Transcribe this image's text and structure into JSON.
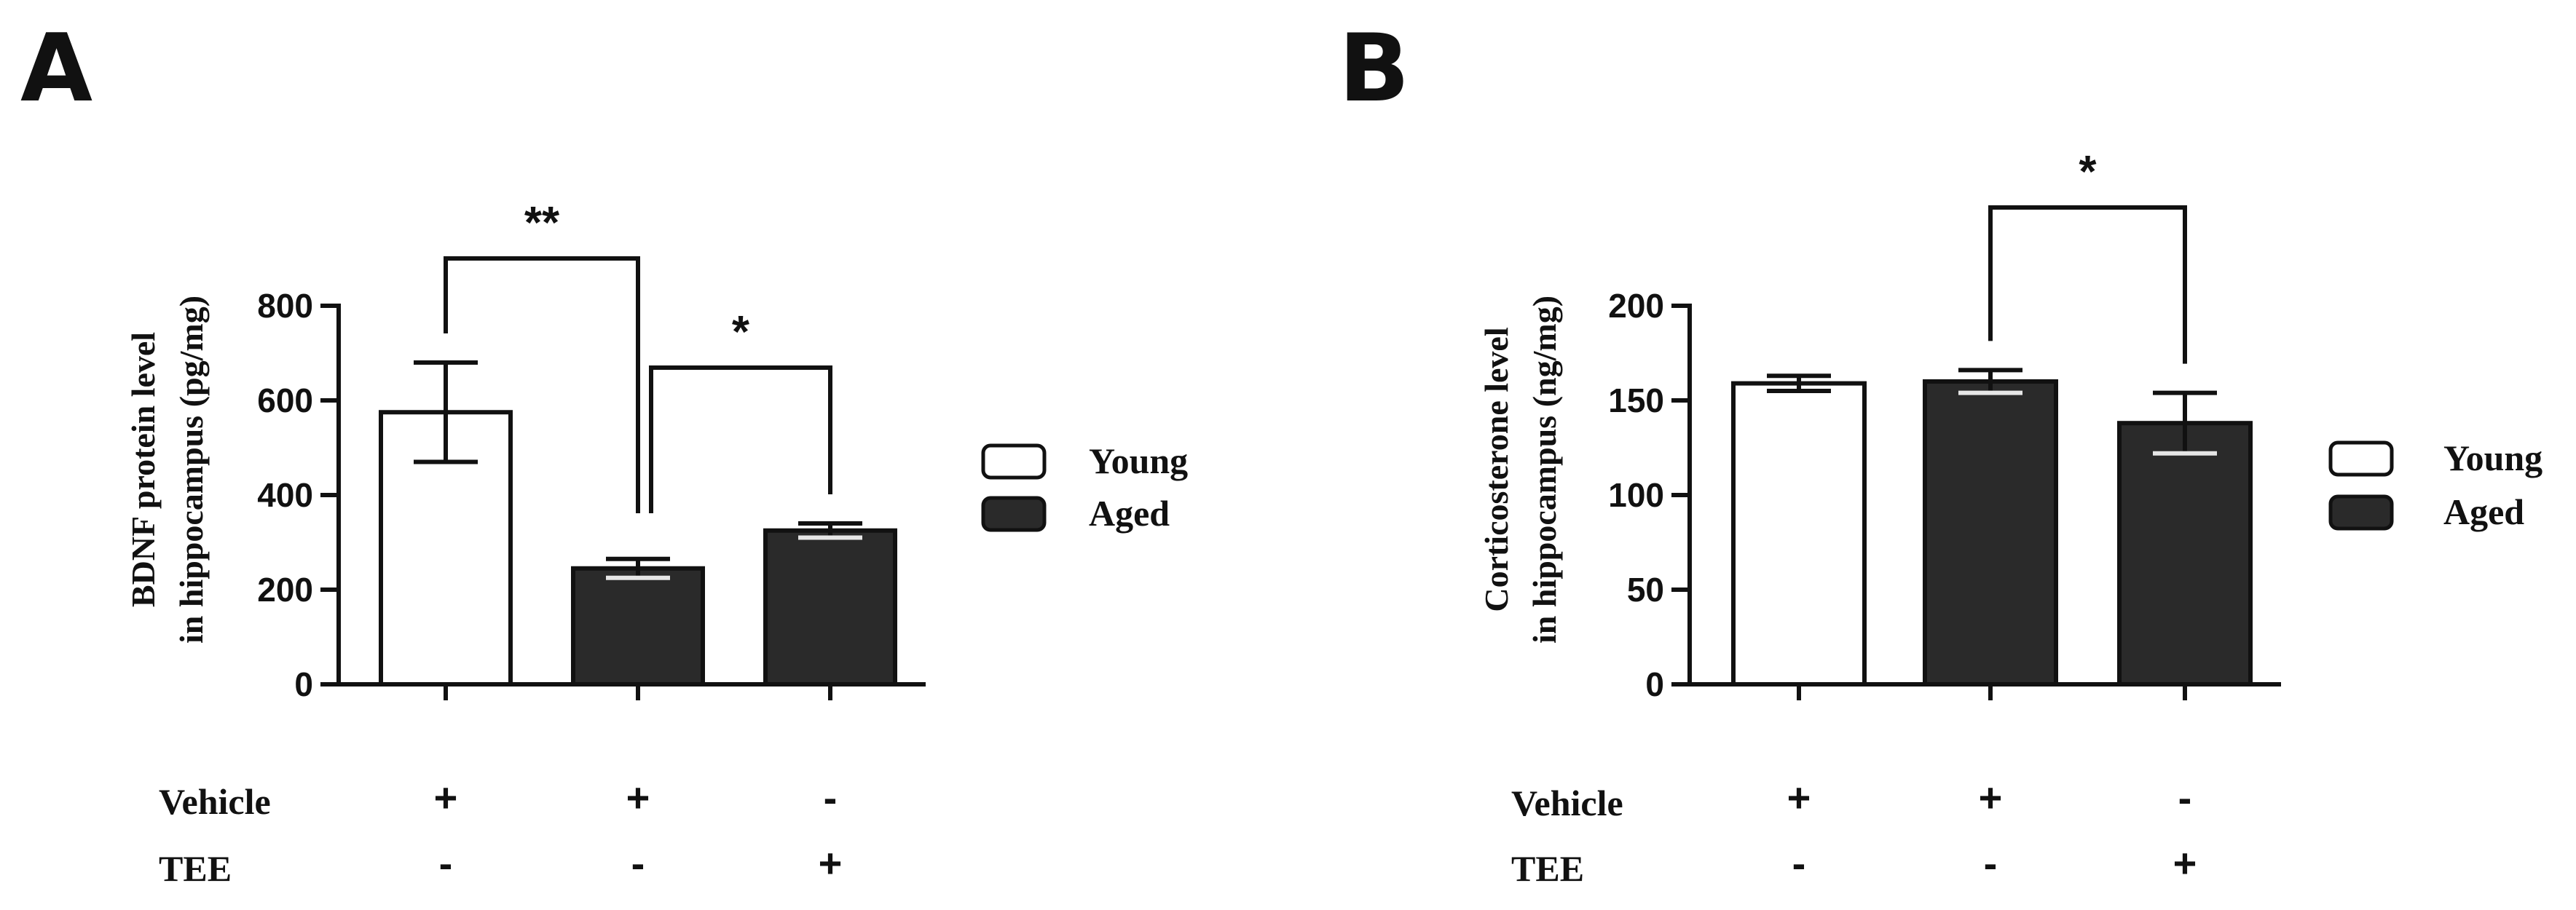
{
  "chart_data": [
    {
      "panel": "A",
      "type": "bar",
      "ylabel_line1": "BDNF protein level",
      "ylabel_line2": "in hippocampus (pg/mg)",
      "ylim": [
        0,
        800
      ],
      "yticks": [
        0,
        200,
        400,
        600,
        800
      ],
      "groups": [
        "Young",
        "Aged",
        "Aged"
      ],
      "values": [
        575,
        245,
        325
      ],
      "errors": [
        105,
        20,
        15
      ],
      "colors": [
        "#ffffff",
        "#2a2a2a",
        "#2a2a2a"
      ],
      "vehicle": [
        "+",
        "+",
        "-"
      ],
      "tee": [
        "-",
        "-",
        "+"
      ],
      "significance": [
        {
          "from": 0,
          "to": 1,
          "label": "**"
        },
        {
          "from": 1,
          "to": 2,
          "label": "*"
        }
      ]
    },
    {
      "panel": "B",
      "type": "bar",
      "ylabel_line1": "Corticosterone level",
      "ylabel_line2": "in hippocampus (ng/mg)",
      "ylim": [
        0,
        200
      ],
      "yticks": [
        0,
        50,
        100,
        150,
        200
      ],
      "groups": [
        "Young",
        "Aged",
        "Aged"
      ],
      "values": [
        159,
        160,
        138
      ],
      "errors": [
        4,
        6,
        16
      ],
      "colors": [
        "#ffffff",
        "#2a2a2a",
        "#2a2a2a"
      ],
      "vehicle": [
        "+",
        "+",
        "-"
      ],
      "tee": [
        "-",
        "-",
        "+"
      ],
      "significance": [
        {
          "from": 1,
          "to": 2,
          "label": "*"
        }
      ]
    }
  ],
  "legend": [
    {
      "label": "Young",
      "color": "#ffffff"
    },
    {
      "label": "Aged",
      "color": "#2a2a2a"
    }
  ],
  "row_labels": {
    "vehicle": "Vehicle",
    "tee": "TEE"
  }
}
